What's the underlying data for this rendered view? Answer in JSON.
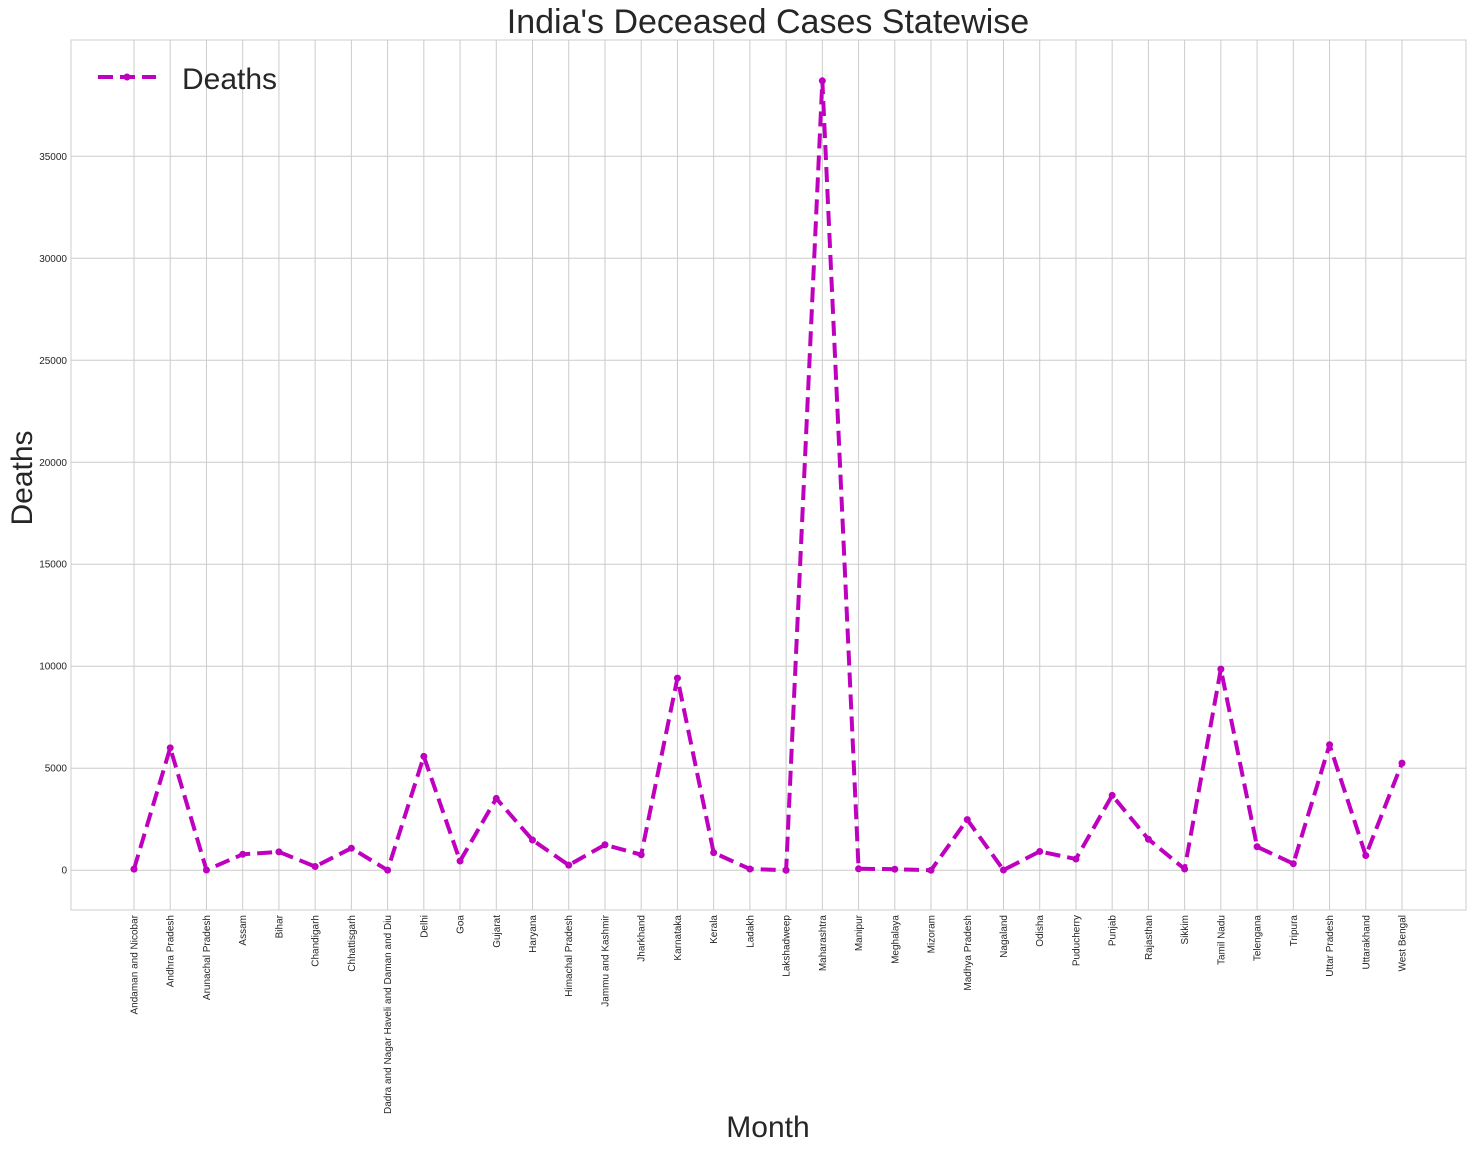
{
  "chart_data": {
    "type": "line",
    "title": "India's Deceased Cases Statewise",
    "xlabel": "Month",
    "ylabel": "Deaths",
    "categories": [
      "Andaman and Nicobar",
      "Andhra Pradesh",
      "Arunachal Pradesh",
      "Assam",
      "Bihar",
      "Chandigarh",
      "Chhattisgarh",
      "Dadra and Nagar Haveli and Daman and Diu",
      "Delhi",
      "Goa",
      "Gujarat",
      "Haryana",
      "Himachal Pradesh",
      "Jammu and Kashmir",
      "Jharkhand",
      "Karnataka",
      "Kerala",
      "Ladakh",
      "Lakshadweep",
      "Maharashtra",
      "Manipur",
      "Meghalaya",
      "Mizoram",
      "Madhya Pradesh",
      "Nagaland",
      "Odisha",
      "Puducherry",
      "Punjab",
      "Rajasthan",
      "Sikkim",
      "Tamil Nadu",
      "Telengana",
      "Tripura",
      "Uttar Pradesh",
      "Uttarakhand",
      "West Bengal"
    ],
    "series": [
      {
        "name": "Deaths",
        "color": "#bf00bf",
        "line_style": "dashed",
        "marker": "circle",
        "values": [
          55,
          6000,
          10,
          780,
          900,
          180,
          1080,
          2,
          5580,
          450,
          3520,
          1480,
          250,
          1250,
          760,
          9420,
          860,
          60,
          0,
          38700,
          70,
          50,
          0,
          2480,
          10,
          920,
          550,
          3670,
          1520,
          60,
          9860,
          1150,
          320,
          6150,
          720,
          5250
        ]
      }
    ],
    "ylim": [
      -1950,
      40700
    ],
    "yticks": [
      0,
      5000,
      10000,
      15000,
      20000,
      25000,
      30000,
      35000
    ],
    "grid": true,
    "legend": "upper left"
  }
}
